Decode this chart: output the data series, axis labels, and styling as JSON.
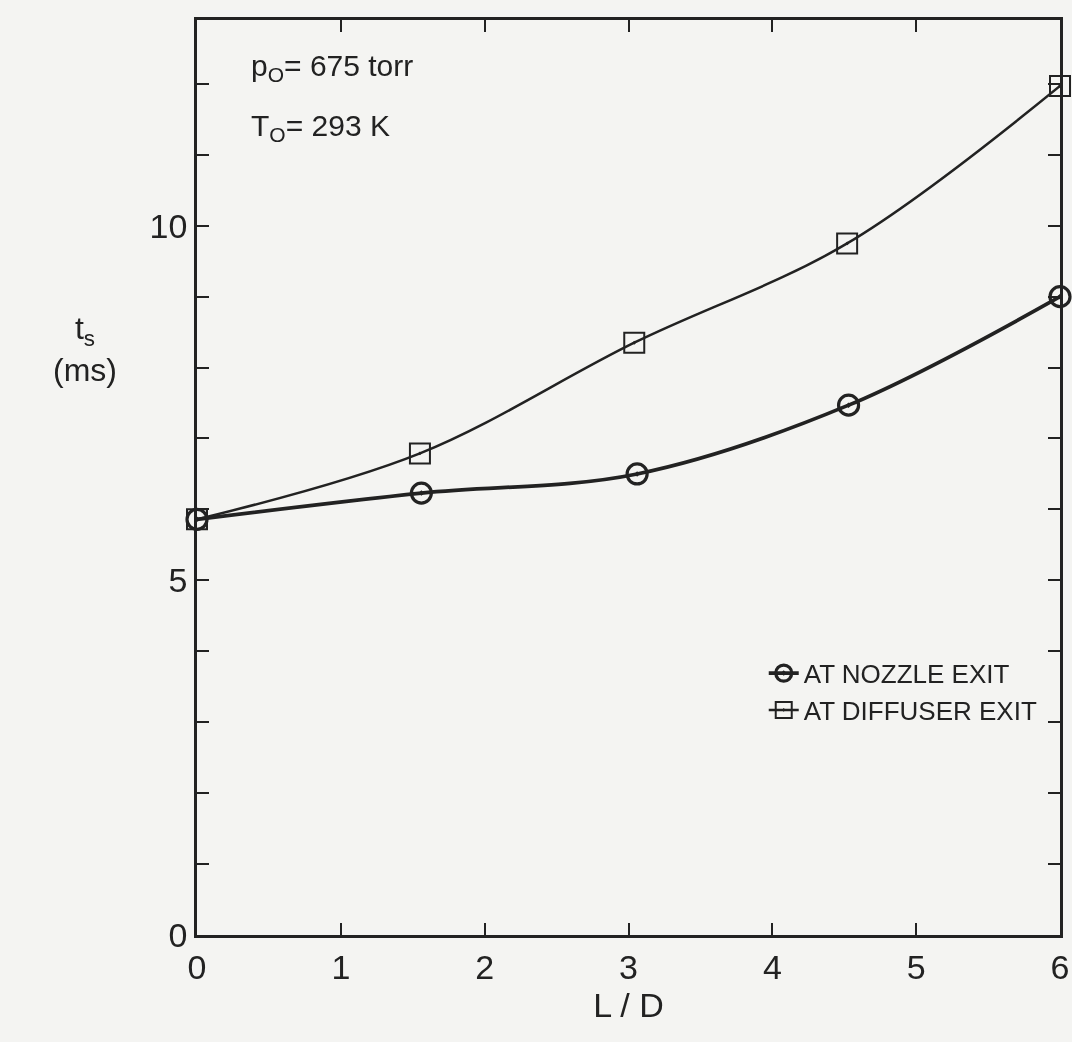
{
  "chart_data": {
    "type": "line",
    "xlabel": "L / D",
    "ylabel": "t$_{s}$\n(ms)",
    "xlim": [
      0,
      6
    ],
    "xticks": [
      0,
      1,
      2,
      3,
      4,
      5,
      6
    ],
    "ylim": [
      0,
      12.9
    ],
    "yticks": [
      0,
      {
        "value": 1,
        "label": null
      },
      {
        "value": 2,
        "label": null
      },
      {
        "value": 3,
        "label": null
      },
      {
        "value": 4,
        "label": null
      },
      5,
      {
        "value": 6,
        "label": null
      },
      {
        "value": 7,
        "label": null
      },
      {
        "value": 8,
        "label": null
      },
      {
        "value": 9,
        "label": null
      },
      10,
      {
        "value": 11,
        "label": null
      },
      {
        "value": 12,
        "label": null
      }
    ],
    "grid": false,
    "legend": "bottom right",
    "line_style": "solid",
    "annotations": [
      "p$_{O}$= 675 torr",
      "T$_{O}$= 293 K"
    ],
    "series": [
      {
        "name": "AT NOZZLE EXIT",
        "color": "#222222",
        "marker": "circle",
        "x": [
          0,
          1.56,
          3.06,
          4.53,
          6
        ],
        "values": [
          5.86,
          6.23,
          6.5,
          7.47,
          9.0
        ]
      },
      {
        "name": "AT DIFFUSER EXIT",
        "color": "#222222",
        "marker": "square",
        "x": [
          0,
          1.55,
          3.04,
          4.52,
          6
        ],
        "values": [
          5.86,
          6.79,
          8.35,
          9.75,
          11.97
        ]
      }
    ]
  }
}
